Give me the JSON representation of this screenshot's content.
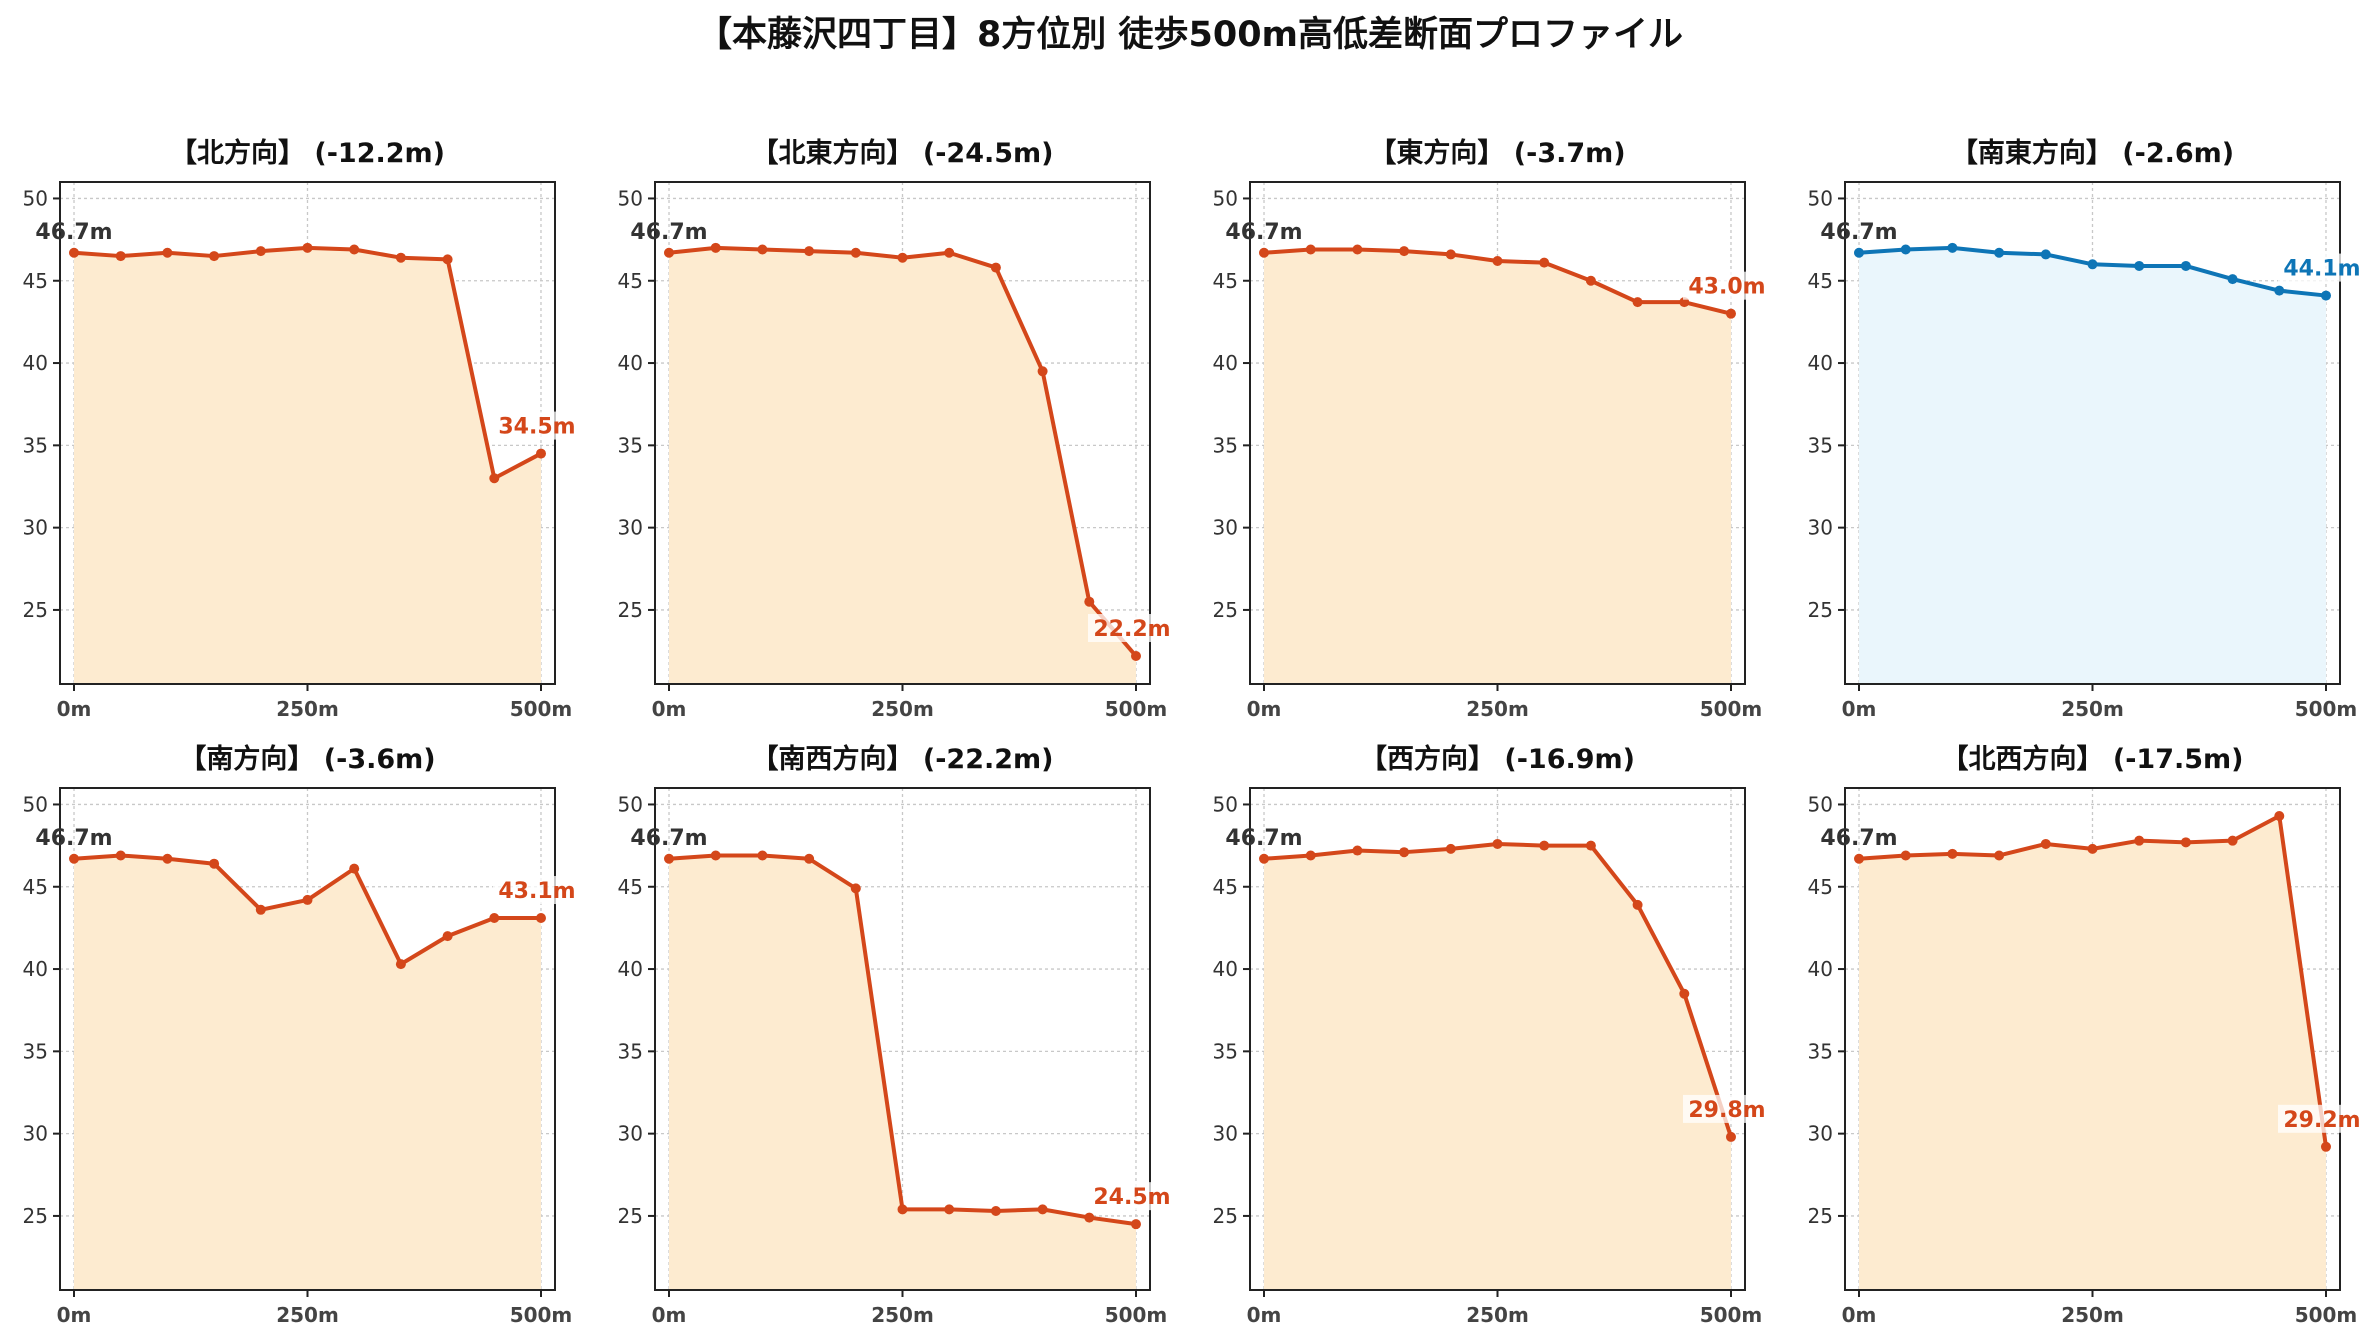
{
  "title": "【本藤沢四丁目】8方位別 徒歩500m高低差断面プロファイル",
  "colors": {
    "line_default": "#d4471a",
    "fill_default": "#fdebd0",
    "line_highlight": "#0e75b6",
    "fill_highlight": "#eaf6fc",
    "start_label": "#333333"
  },
  "chart_data": [
    {
      "type": "area",
      "title": "【北方向】 (-12.2m)",
      "x": [
        0,
        50,
        100,
        150,
        200,
        250,
        300,
        350,
        400,
        450,
        500
      ],
      "x_ticks": [
        0,
        250,
        500
      ],
      "x_tick_labels": [
        "0m",
        "250m",
        "500m"
      ],
      "y": [
        46.7,
        46.5,
        46.7,
        46.5,
        46.8,
        47.0,
        46.9,
        46.4,
        46.3,
        33.0,
        34.5
      ],
      "y_ticks": [
        25,
        30,
        35,
        40,
        45,
        50
      ],
      "xlim": [
        -15,
        515
      ],
      "ylim": [
        20.5,
        51
      ],
      "grid": true,
      "start_label": "46.7m",
      "end_label": "34.5m",
      "highlight": false
    },
    {
      "type": "area",
      "title": "【北東方向】 (-24.5m)",
      "x": [
        0,
        50,
        100,
        150,
        200,
        250,
        300,
        350,
        400,
        450,
        500
      ],
      "x_ticks": [
        0,
        250,
        500
      ],
      "x_tick_labels": [
        "0m",
        "250m",
        "500m"
      ],
      "y": [
        46.7,
        47.0,
        46.9,
        46.8,
        46.7,
        46.4,
        46.7,
        45.8,
        39.5,
        25.5,
        22.2
      ],
      "y_ticks": [
        25,
        30,
        35,
        40,
        45,
        50
      ],
      "xlim": [
        -15,
        515
      ],
      "ylim": [
        20.5,
        51
      ],
      "grid": true,
      "start_label": "46.7m",
      "end_label": "22.2m",
      "highlight": false
    },
    {
      "type": "area",
      "title": "【東方向】 (-3.7m)",
      "x": [
        0,
        50,
        100,
        150,
        200,
        250,
        300,
        350,
        400,
        450,
        500
      ],
      "x_ticks": [
        0,
        250,
        500
      ],
      "x_tick_labels": [
        "0m",
        "250m",
        "500m"
      ],
      "y": [
        46.7,
        46.9,
        46.9,
        46.8,
        46.6,
        46.2,
        46.1,
        45.0,
        43.7,
        43.7,
        43.0
      ],
      "y_ticks": [
        25,
        30,
        35,
        40,
        45,
        50
      ],
      "xlim": [
        -15,
        515
      ],
      "ylim": [
        20.5,
        51
      ],
      "grid": true,
      "start_label": "46.7m",
      "end_label": "43.0m",
      "highlight": false
    },
    {
      "type": "area",
      "title": "【南東方向】 (-2.6m)",
      "x": [
        0,
        50,
        100,
        150,
        200,
        250,
        300,
        350,
        400,
        450,
        500
      ],
      "x_ticks": [
        0,
        250,
        500
      ],
      "x_tick_labels": [
        "0m",
        "250m",
        "500m"
      ],
      "y": [
        46.7,
        46.9,
        47.0,
        46.7,
        46.6,
        46.0,
        45.9,
        45.9,
        45.1,
        44.4,
        44.1
      ],
      "y_ticks": [
        25,
        30,
        35,
        40,
        45,
        50
      ],
      "xlim": [
        -15,
        515
      ],
      "ylim": [
        20.5,
        51
      ],
      "grid": true,
      "start_label": "46.7m",
      "end_label": "44.1m",
      "highlight": true
    },
    {
      "type": "area",
      "title": "【南方向】 (-3.6m)",
      "x": [
        0,
        50,
        100,
        150,
        200,
        250,
        300,
        350,
        400,
        450,
        500
      ],
      "x_ticks": [
        0,
        250,
        500
      ],
      "x_tick_labels": [
        "0m",
        "250m",
        "500m"
      ],
      "y": [
        46.7,
        46.9,
        46.7,
        46.4,
        43.6,
        44.2,
        46.1,
        40.3,
        42.0,
        43.1,
        43.1
      ],
      "y_ticks": [
        25,
        30,
        35,
        40,
        45,
        50
      ],
      "xlim": [
        -15,
        515
      ],
      "ylim": [
        20.5,
        51
      ],
      "grid": true,
      "start_label": "46.7m",
      "end_label": "43.1m",
      "highlight": false
    },
    {
      "type": "area",
      "title": "【南西方向】 (-22.2m)",
      "x": [
        0,
        50,
        100,
        150,
        200,
        250,
        300,
        350,
        400,
        450,
        500
      ],
      "x_ticks": [
        0,
        250,
        500
      ],
      "x_tick_labels": [
        "0m",
        "250m",
        "500m"
      ],
      "y": [
        46.7,
        46.9,
        46.9,
        46.7,
        44.9,
        25.4,
        25.4,
        25.3,
        25.4,
        24.9,
        24.5
      ],
      "y_ticks": [
        25,
        30,
        35,
        40,
        45,
        50
      ],
      "xlim": [
        -15,
        515
      ],
      "ylim": [
        20.5,
        51
      ],
      "grid": true,
      "start_label": "46.7m",
      "end_label": "24.5m",
      "highlight": false
    },
    {
      "type": "area",
      "title": "【西方向】 (-16.9m)",
      "x": [
        0,
        50,
        100,
        150,
        200,
        250,
        300,
        350,
        400,
        450,
        500
      ],
      "x_ticks": [
        0,
        250,
        500
      ],
      "x_tick_labels": [
        "0m",
        "250m",
        "500m"
      ],
      "y": [
        46.7,
        46.9,
        47.2,
        47.1,
        47.3,
        47.6,
        47.5,
        47.5,
        43.9,
        38.5,
        29.8
      ],
      "y_ticks": [
        25,
        30,
        35,
        40,
        45,
        50
      ],
      "xlim": [
        -15,
        515
      ],
      "ylim": [
        20.5,
        51
      ],
      "grid": true,
      "start_label": "46.7m",
      "end_label": "29.8m",
      "highlight": false
    },
    {
      "type": "area",
      "title": "【北西方向】 (-17.5m)",
      "x": [
        0,
        50,
        100,
        150,
        200,
        250,
        300,
        350,
        400,
        450,
        500
      ],
      "x_ticks": [
        0,
        250,
        500
      ],
      "x_tick_labels": [
        "0m",
        "250m",
        "500m"
      ],
      "y": [
        46.7,
        46.9,
        47.0,
        46.9,
        47.6,
        47.3,
        47.8,
        47.7,
        47.8,
        49.3,
        29.2
      ],
      "y_ticks": [
        25,
        30,
        35,
        40,
        45,
        50
      ],
      "xlim": [
        -15,
        515
      ],
      "ylim": [
        20.5,
        51
      ],
      "grid": true,
      "start_label": "46.7m",
      "end_label": "29.2m",
      "highlight": false
    }
  ]
}
